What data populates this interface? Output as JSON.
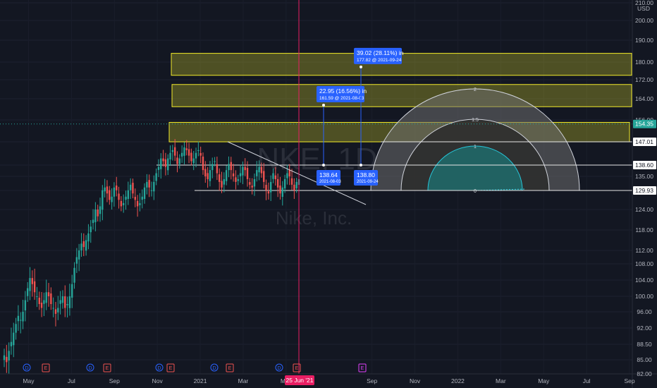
{
  "chart_data": {
    "type": "candlestick",
    "symbol": "NKE, 1D",
    "name": "Nike, Inc.",
    "currency": "USD",
    "colors": {
      "up": "#26a69a",
      "down": "#ef5350",
      "zone_fill": "#c9c62a",
      "zone_stroke": "#f2ea2a",
      "arc_teal": "#1f6b6b",
      "arc_white": "#d1d4dc",
      "label_blue": "#2962ff",
      "vline": "#e91e63",
      "bg": "#131722",
      "earnings": "#ef5350",
      "dividend": "#2962ff",
      "future_earnings": "#e040fb"
    },
    "y_axis_labels": [
      "210.00",
      "200.00",
      "190.00",
      "180.00",
      "172.00",
      "164.00",
      "156.00",
      "147.01",
      "138.60",
      "135.00",
      "129.93",
      "124.00",
      "118.00",
      "112.00",
      "108.00",
      "104.00",
      "100.00",
      "96.00",
      "92.00",
      "88.50",
      "85.00",
      "82.00"
    ],
    "ylim": [
      82,
      210
    ],
    "x_axis_labels": [
      "May",
      "Jul",
      "Sep",
      "Nov",
      "2021",
      "Mar",
      "May",
      "25 Jun '21",
      "Sep",
      "Nov",
      "2022",
      "Mar",
      "May",
      "Jul",
      "Sep"
    ],
    "current_price": "154.35",
    "levels": [
      {
        "value": 147.01,
        "label": "147.01"
      },
      {
        "value": 138.6,
        "label": "138.60"
      },
      {
        "value": 129.93,
        "label": "129.93"
      }
    ],
    "zones": [
      {
        "low": 174,
        "high": 184
      },
      {
        "low": 161,
        "high": 170
      },
      {
        "low": 147,
        "high": 155
      }
    ],
    "price_projections": [
      {
        "change_label": "22.95 (16.56%) in",
        "target_label": "161.59 @ 2021-08-03",
        "start_label": "138.64",
        "start_date": "2021-08-03"
      },
      {
        "change_label": "39.02 (28.11%) in",
        "target_label": "177.82 @ 2021-09-24",
        "start_label": "138.80",
        "start_date": "2021-09-24"
      }
    ],
    "fib_arc_labels": [
      "2",
      "1.5",
      "1",
      "0"
    ],
    "event_markers": [
      {
        "date": "2020-05",
        "kind": "D"
      },
      {
        "date": "2020-06",
        "kind": "E"
      },
      {
        "date": "2020-09",
        "kind": "D"
      },
      {
        "date": "2020-09",
        "kind": "E"
      },
      {
        "date": "2020-12",
        "kind": "D"
      },
      {
        "date": "2020-12",
        "kind": "E"
      },
      {
        "date": "2021-03",
        "kind": "D"
      },
      {
        "date": "2021-03",
        "kind": "E"
      },
      {
        "date": "2021-06",
        "kind": "D"
      },
      {
        "date": "2021-06",
        "kind": "E"
      },
      {
        "date": "2021-09",
        "kind": "E"
      }
    ],
    "candles_close": [
      86,
      84.5,
      87,
      89,
      91,
      93,
      95,
      94,
      96,
      99,
      102,
      104.5,
      103,
      101,
      100,
      98,
      97,
      99,
      101,
      100,
      98,
      97,
      95.5,
      97,
      99,
      100,
      97,
      98,
      100,
      103,
      107,
      110,
      112,
      114,
      113,
      115,
      117,
      119,
      121,
      124,
      122,
      125,
      130,
      131,
      129,
      127,
      128,
      131,
      130,
      127,
      125,
      126,
      128,
      130,
      132,
      129,
      127,
      125,
      126,
      128,
      131,
      133,
      131,
      130,
      133,
      136,
      138,
      141,
      140,
      138,
      141,
      143,
      144,
      142,
      139,
      141,
      143,
      145,
      144,
      142,
      140,
      141,
      143,
      144,
      142,
      137,
      135,
      134,
      137,
      139,
      140,
      136,
      133,
      131,
      134,
      137,
      139,
      137,
      135,
      133,
      134,
      136,
      138,
      137,
      134,
      132,
      131,
      134,
      137,
      138,
      136,
      133,
      130,
      129,
      133,
      136,
      134,
      131,
      129,
      131,
      134,
      136,
      135,
      132,
      130,
      133,
      134
    ]
  }
}
